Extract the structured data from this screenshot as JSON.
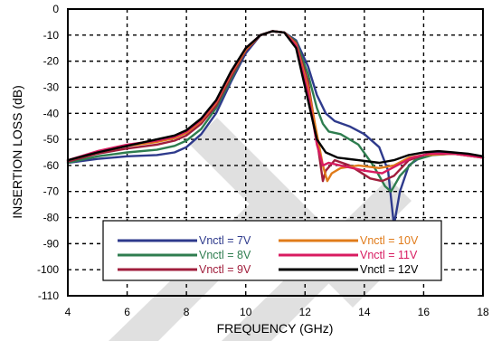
{
  "chart_data": {
    "type": "line",
    "xlabel": "FREQUENCY (GHz)",
    "ylabel": "INSERTION LOSS (dB)",
    "xlim": [
      4,
      18
    ],
    "ylim": [
      -110,
      0
    ],
    "xticks": [
      4,
      6,
      8,
      10,
      12,
      14,
      16,
      18
    ],
    "yticks": [
      0,
      -10,
      -20,
      -30,
      -40,
      -50,
      -60,
      -70,
      -80,
      -90,
      -100,
      -110
    ],
    "xtick_labels": [
      "4",
      "6",
      "8",
      "10",
      "12",
      "14",
      "16",
      "18"
    ],
    "ytick_labels": [
      "0",
      "-10",
      "-20",
      "-30",
      "-40",
      "-50",
      "-60",
      "-70",
      "-80",
      "-90",
      "-100",
      "-110"
    ],
    "grid": true,
    "legend_position": "bottom-center",
    "series": [
      {
        "name": "Vnctl = 7V",
        "color": "#2e3a8c",
        "points": [
          [
            4,
            -59
          ],
          [
            5,
            -57.5
          ],
          [
            6,
            -56.5
          ],
          [
            7,
            -56
          ],
          [
            7.6,
            -55
          ],
          [
            8,
            -53
          ],
          [
            8.5,
            -48
          ],
          [
            9,
            -40
          ],
          [
            9.5,
            -28
          ],
          [
            10,
            -17
          ],
          [
            10.5,
            -10
          ],
          [
            10.9,
            -8.5
          ],
          [
            11.3,
            -9
          ],
          [
            11.7,
            -12
          ],
          [
            12.1,
            -22
          ],
          [
            12.4,
            -33
          ],
          [
            12.7,
            -40
          ],
          [
            13,
            -43
          ],
          [
            13.5,
            -45
          ],
          [
            14,
            -48
          ],
          [
            14.5,
            -53
          ],
          [
            14.8,
            -62
          ],
          [
            15,
            -83
          ],
          [
            15.2,
            -70
          ],
          [
            15.5,
            -60
          ],
          [
            16,
            -56
          ],
          [
            16.5,
            -55
          ],
          [
            17,
            -55.5
          ],
          [
            17.5,
            -56
          ],
          [
            18,
            -57
          ]
        ]
      },
      {
        "name": "Vnctl = 8V",
        "color": "#2e7d4f",
        "points": [
          [
            4,
            -59
          ],
          [
            5,
            -56.5
          ],
          [
            6,
            -55
          ],
          [
            7,
            -54
          ],
          [
            7.6,
            -52.5
          ],
          [
            8,
            -50.5
          ],
          [
            8.5,
            -46
          ],
          [
            9,
            -38
          ],
          [
            9.5,
            -27
          ],
          [
            10,
            -16
          ],
          [
            10.5,
            -10
          ],
          [
            10.9,
            -8.5
          ],
          [
            11.3,
            -9
          ],
          [
            11.7,
            -12.5
          ],
          [
            12.1,
            -25
          ],
          [
            12.4,
            -38
          ],
          [
            12.6,
            -44
          ],
          [
            12.8,
            -47
          ],
          [
            13.2,
            -48
          ],
          [
            13.8,
            -52
          ],
          [
            14.3,
            -60
          ],
          [
            14.7,
            -68
          ],
          [
            14.9,
            -70
          ],
          [
            15.2,
            -64
          ],
          [
            15.7,
            -58
          ],
          [
            16.3,
            -56
          ],
          [
            17,
            -55.5
          ],
          [
            17.5,
            -56
          ],
          [
            18,
            -57
          ]
        ]
      },
      {
        "name": "Vnctl = 9V",
        "color": "#a01e3c",
        "points": [
          [
            4,
            -58.5
          ],
          [
            5,
            -55.5
          ],
          [
            6,
            -53.5
          ],
          [
            7,
            -52
          ],
          [
            7.6,
            -50.5
          ],
          [
            8,
            -48.5
          ],
          [
            8.5,
            -44
          ],
          [
            9,
            -37
          ],
          [
            9.5,
            -26
          ],
          [
            10,
            -16
          ],
          [
            10.5,
            -10
          ],
          [
            10.9,
            -8.5
          ],
          [
            11.3,
            -9
          ],
          [
            11.7,
            -13
          ],
          [
            12.1,
            -28
          ],
          [
            12.3,
            -42
          ],
          [
            12.5,
            -58
          ],
          [
            12.6,
            -66
          ],
          [
            12.7,
            -62
          ],
          [
            13,
            -58
          ],
          [
            13.5,
            -60
          ],
          [
            14.2,
            -65
          ],
          [
            14.6,
            -66
          ],
          [
            15,
            -64
          ],
          [
            15.5,
            -58
          ],
          [
            16,
            -56
          ],
          [
            17,
            -55.5
          ],
          [
            18,
            -57
          ]
        ]
      },
      {
        "name": "Vnctl = 10V",
        "color": "#e07b1a",
        "points": [
          [
            4,
            -58
          ],
          [
            5,
            -55
          ],
          [
            6,
            -52.5
          ],
          [
            7,
            -51
          ],
          [
            7.6,
            -49.5
          ],
          [
            8,
            -47.5
          ],
          [
            8.5,
            -43
          ],
          [
            9,
            -36
          ],
          [
            9.5,
            -25
          ],
          [
            10,
            -15.5
          ],
          [
            10.5,
            -10
          ],
          [
            10.9,
            -8.5
          ],
          [
            11.3,
            -9
          ],
          [
            11.7,
            -13.5
          ],
          [
            12.1,
            -30
          ],
          [
            12.4,
            -48
          ],
          [
            12.6,
            -60
          ],
          [
            12.75,
            -66
          ],
          [
            12.9,
            -63
          ],
          [
            13.2,
            -61
          ],
          [
            13.8,
            -60
          ],
          [
            14.5,
            -61
          ],
          [
            15,
            -60
          ],
          [
            15.5,
            -57
          ],
          [
            16,
            -56
          ],
          [
            17,
            -55.5
          ],
          [
            18,
            -57
          ]
        ]
      },
      {
        "name": "Vnctl = 11V",
        "color": "#d81b60",
        "points": [
          [
            4,
            -58
          ],
          [
            5,
            -54.5
          ],
          [
            6,
            -52
          ],
          [
            7,
            -50.5
          ],
          [
            7.6,
            -49
          ],
          [
            8,
            -47
          ],
          [
            8.5,
            -42.5
          ],
          [
            9,
            -35.5
          ],
          [
            9.5,
            -24.5
          ],
          [
            10,
            -15
          ],
          [
            10.5,
            -10
          ],
          [
            10.9,
            -8.5
          ],
          [
            11.3,
            -9
          ],
          [
            11.7,
            -14
          ],
          [
            12.1,
            -32
          ],
          [
            12.4,
            -52
          ],
          [
            12.6,
            -60
          ],
          [
            12.8,
            -59
          ],
          [
            13.2,
            -60
          ],
          [
            14,
            -62
          ],
          [
            14.6,
            -63
          ],
          [
            15.1,
            -60
          ],
          [
            15.6,
            -57
          ],
          [
            16.2,
            -55.5
          ],
          [
            17,
            -55.5
          ],
          [
            18,
            -57
          ]
        ]
      },
      {
        "name": "Vnctl = 12V",
        "color": "#000000",
        "points": [
          [
            4,
            -58
          ],
          [
            5,
            -55
          ],
          [
            6,
            -52.5
          ],
          [
            7,
            -50
          ],
          [
            7.6,
            -48.5
          ],
          [
            8,
            -46.5
          ],
          [
            8.5,
            -42
          ],
          [
            9,
            -35
          ],
          [
            9.5,
            -24
          ],
          [
            10,
            -15
          ],
          [
            10.5,
            -10
          ],
          [
            10.9,
            -8.5
          ],
          [
            11.3,
            -9
          ],
          [
            11.7,
            -15
          ],
          [
            12.1,
            -35
          ],
          [
            12.4,
            -50
          ],
          [
            12.7,
            -55
          ],
          [
            13.1,
            -57
          ],
          [
            13.8,
            -58
          ],
          [
            14.5,
            -59
          ],
          [
            15,
            -58
          ],
          [
            15.5,
            -56
          ],
          [
            16,
            -55
          ],
          [
            16.5,
            -54.5
          ],
          [
            17,
            -55
          ],
          [
            17.5,
            -55.5
          ],
          [
            18,
            -56.5
          ]
        ]
      }
    ]
  }
}
